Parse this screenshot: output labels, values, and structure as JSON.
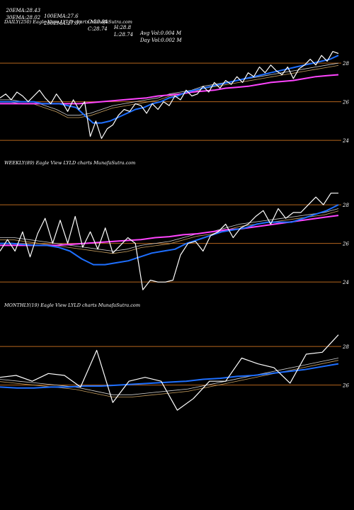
{
  "header": {
    "row1": [
      {
        "label": "20EMA:",
        "value": "28.43"
      },
      {
        "label": "100EMA:",
        "value": "27.6"
      },
      {
        "label": "O:",
        "value": "28.84"
      },
      {
        "label": "H:",
        "value": "28.8"
      },
      {
        "label": "Avg Vol:",
        "value": "0.004 M"
      }
    ],
    "row2": [
      {
        "label": "30EMA:",
        "value": "28.02"
      },
      {
        "label": "200EMA:",
        "value": "27.07"
      },
      {
        "label": "C:",
        "value": "28.74"
      },
      {
        "label": "L:",
        "value": "28.74"
      },
      {
        "label": "Day Vol:",
        "value": "0.002 M"
      }
    ]
  },
  "colors": {
    "price": "#ffffff",
    "ema_short": "#1e6fff",
    "ema_long": "#ff44ff",
    "ref_line": "#b5651d",
    "ema_thin": "#cfcfcf"
  },
  "chart_data": [
    {
      "type": "line",
      "label": "DAILY(250) Eagle   View  LYLD charts MunafaSutra.com",
      "ylim": [
        23.2,
        29.8
      ],
      "yticks": [
        "28",
        "26",
        "24"
      ],
      "ref_lines": [
        28.0,
        26.0,
        24.0
      ],
      "series": [
        {
          "role": "price",
          "values": [
            26.2,
            26.4,
            26.1,
            26.5,
            26.3,
            26.0,
            26.3,
            26.6,
            26.2,
            25.9,
            26.4,
            26.0,
            25.5,
            26.1,
            25.6,
            26.0,
            24.2,
            25.0,
            24.1,
            24.6,
            24.8,
            25.3,
            25.6,
            25.5,
            25.9,
            25.8,
            25.4,
            25.9,
            25.6,
            26.0,
            25.8,
            26.3,
            26.1,
            26.6,
            26.3,
            26.4,
            26.8,
            26.5,
            27.0,
            26.7,
            27.1,
            26.9,
            27.3,
            27.0,
            27.5,
            27.3,
            27.8,
            27.5,
            27.9,
            27.6,
            27.4,
            27.8,
            27.2,
            27.7,
            27.9,
            28.2,
            27.9,
            28.4,
            28.1,
            28.6,
            28.5
          ]
        },
        {
          "role": "ema_short",
          "values": [
            26.0,
            26.0,
            26.0,
            26.0,
            26.0,
            25.9,
            25.9,
            25.9,
            25.8,
            25.7,
            25.3,
            24.9,
            24.9,
            25.0,
            25.2,
            25.4,
            25.6,
            25.7,
            25.9,
            26.0,
            26.2,
            26.3,
            26.5,
            26.6,
            26.7,
            26.8,
            26.9,
            27.0,
            27.1,
            27.2,
            27.3,
            27.4,
            27.5,
            27.6,
            27.7,
            27.8,
            27.9,
            28.0,
            28.1,
            28.2,
            28.4
          ]
        },
        {
          "role": "ema_long",
          "values": [
            25.9,
            25.9,
            25.9,
            25.9,
            25.9,
            25.9,
            25.9,
            25.9,
            25.95,
            26.0,
            26.05,
            26.1,
            26.15,
            26.2,
            26.3,
            26.35,
            26.4,
            26.5,
            26.55,
            26.6,
            26.7,
            26.75,
            26.8,
            26.9,
            27.0,
            27.05,
            27.1,
            27.2,
            27.3,
            27.35,
            27.4
          ]
        },
        {
          "role": "ema_thin",
          "values": [
            26.1,
            26.1,
            26.0,
            26.0,
            25.8,
            25.6,
            25.3,
            25.3,
            25.4,
            25.6,
            25.8,
            25.9,
            26.0,
            26.1,
            26.2,
            26.4,
            26.5,
            26.6,
            26.8,
            26.9,
            27.0,
            27.1,
            27.2,
            27.3,
            27.4,
            27.5,
            27.6,
            27.7,
            27.8,
            27.9,
            28.0
          ]
        }
      ]
    },
    {
      "type": "line",
      "label": "WEEKLY(89) Eagle   View  LYLD charts MunafaSutra.com",
      "ylim": [
        23.2,
        29.8
      ],
      "yticks": [
        "28",
        "26",
        "24"
      ],
      "ref_lines": [
        28.0,
        26.0,
        24.0
      ],
      "series": [
        {
          "role": "price",
          "values": [
            25.6,
            26.2,
            25.6,
            26.6,
            25.3,
            26.5,
            27.3,
            26.0,
            27.2,
            26.0,
            27.4,
            25.8,
            26.6,
            25.7,
            26.8,
            25.5,
            25.9,
            26.3,
            26.0,
            23.6,
            24.1,
            24.0,
            24.0,
            24.1,
            25.4,
            26.0,
            26.1,
            25.6,
            26.4,
            26.6,
            27.0,
            26.3,
            26.8,
            27.0,
            27.4,
            27.7,
            27.0,
            27.8,
            27.3,
            27.6,
            27.6,
            28.0,
            28.4,
            28.0,
            28.6,
            28.6
          ]
        },
        {
          "role": "ema_short",
          "values": [
            26.0,
            26.0,
            25.95,
            25.9,
            25.9,
            25.8,
            25.6,
            25.2,
            24.9,
            24.9,
            25.0,
            25.1,
            25.3,
            25.5,
            25.6,
            25.7,
            26.0,
            26.2,
            26.4,
            26.6,
            26.7,
            26.8,
            27.0,
            27.1,
            27.1,
            27.1,
            27.3,
            27.5,
            27.7,
            28.0
          ]
        },
        {
          "role": "ema_long",
          "values": [
            25.9,
            25.9,
            25.9,
            25.9,
            25.9,
            25.95,
            26.0,
            26.05,
            26.1,
            26.15,
            26.2,
            26.3,
            26.35,
            26.45,
            26.5,
            26.6,
            26.7,
            26.75,
            26.85,
            26.95,
            27.05,
            27.15,
            27.25,
            27.35,
            27.45
          ]
        },
        {
          "role": "ema_thin",
          "values": [
            26.3,
            26.3,
            26.2,
            26.1,
            26.0,
            25.9,
            25.8,
            25.7,
            25.6,
            25.7,
            25.9,
            26.0,
            26.1,
            26.3,
            26.5,
            26.6,
            26.8,
            27.0,
            27.1,
            27.2,
            27.3,
            27.4,
            27.5,
            27.6,
            27.8
          ]
        }
      ]
    },
    {
      "type": "line",
      "label": "MONTHLY(19) Eagle   View  LYLD charts MunafaSutra.com",
      "ylim": [
        23.2,
        29.8
      ],
      "yticks": [
        "28",
        "26"
      ],
      "ref_lines": [
        28.0,
        26.0
      ],
      "series": [
        {
          "role": "price",
          "values": [
            26.4,
            26.5,
            26.2,
            26.6,
            26.5,
            25.9,
            27.8,
            25.1,
            26.2,
            26.4,
            26.2,
            24.7,
            25.3,
            26.2,
            26.2,
            27.4,
            27.1,
            26.9,
            26.1,
            27.6,
            27.7,
            28.6
          ]
        },
        {
          "role": "ema_short",
          "values": [
            25.9,
            25.85,
            25.85,
            25.9,
            25.9,
            25.95,
            25.95,
            26.0,
            26.05,
            26.1,
            26.15,
            26.2,
            26.3,
            26.35,
            26.45,
            26.5,
            26.6,
            26.7,
            26.8,
            26.95,
            27.1
          ]
        },
        {
          "role": "ema_thin",
          "values": [
            26.3,
            26.2,
            26.1,
            26.0,
            25.9,
            25.7,
            25.5,
            25.5,
            25.6,
            25.7,
            25.8,
            26.0,
            26.2,
            26.4,
            26.6,
            26.8,
            27.0,
            27.2,
            27.4
          ]
        }
      ]
    }
  ]
}
